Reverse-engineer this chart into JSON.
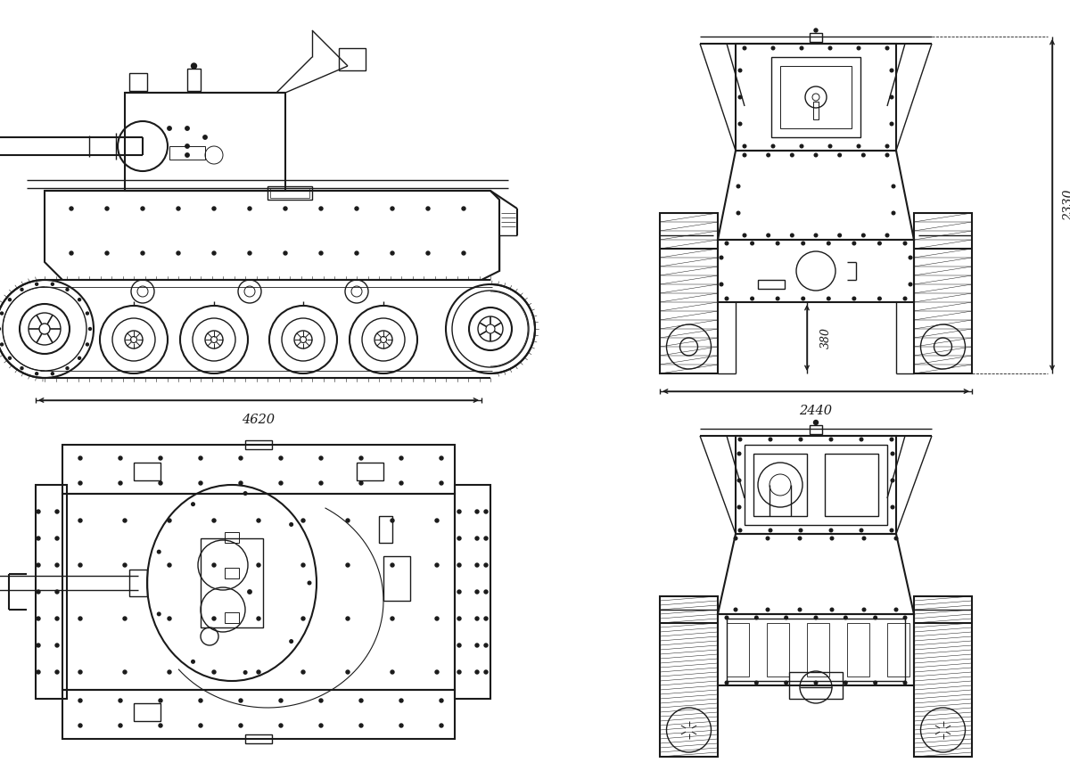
{
  "bg": "#ffffff",
  "lc": "#1a1a1a",
  "lw": 1.0,
  "lw2": 1.5,
  "lw3": 2.0,
  "dim_4620": "4620",
  "dim_2440": "2440",
  "dim_2330": "2330",
  "dim_380": "380"
}
